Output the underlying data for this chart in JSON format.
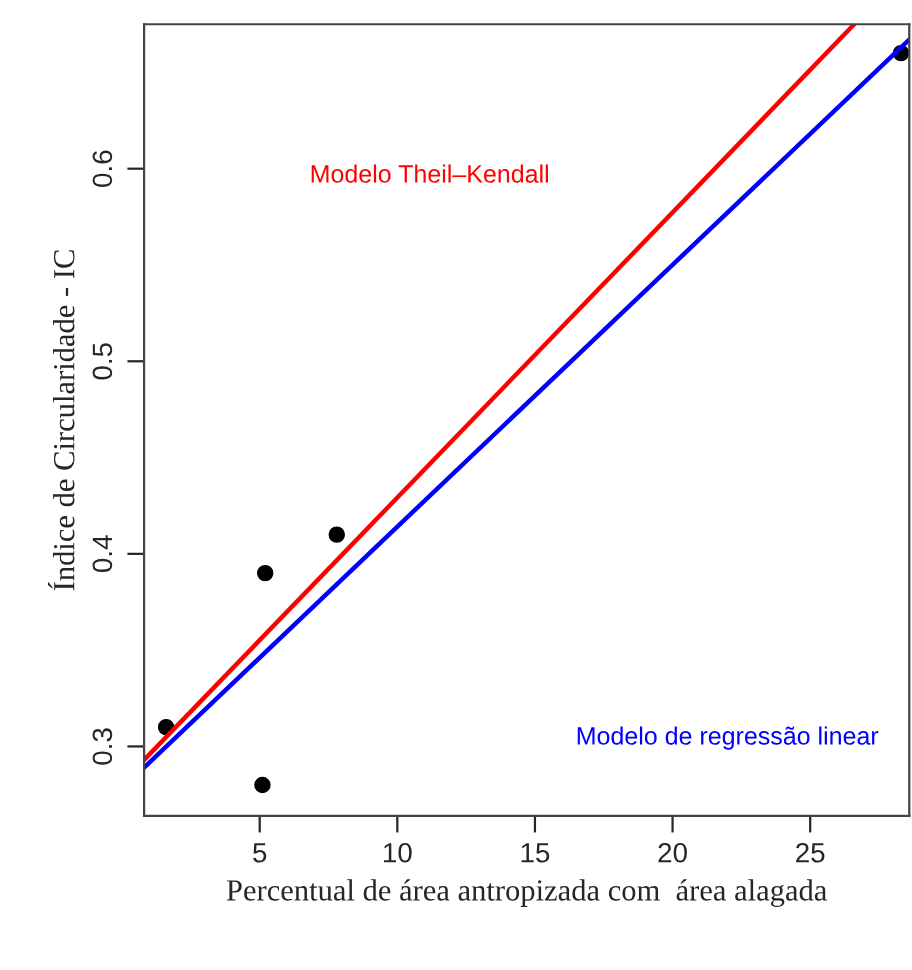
{
  "chart_data": {
    "type": "scatter",
    "xlabel": "Percentual de área antropizada com  área alagada",
    "ylabel": "Índice de Circularidade - IC",
    "series": [
      {
        "marker": "circle",
        "color": "#000000",
        "x": [
          1.6,
          5.1,
          5.2,
          7.8,
          28.3
        ],
        "values": [
          0.31,
          0.28,
          0.39,
          0.41,
          0.66
        ]
      },
      {
        "type": "line",
        "name": "Modelo Theil–Kendall",
        "color": "#ff0000",
        "x": [
          0.8,
          26.6
        ],
        "values": [
          0.293,
          0.675
        ]
      },
      {
        "type": "line",
        "name": "Modelo de regressão linear",
        "color": "#0000ff",
        "x": [
          0.8,
          28.6
        ],
        "values": [
          0.289,
          0.667
        ]
      }
    ],
    "xlim": [
      0.8,
      28.6
    ],
    "ylim": [
      0.264,
      0.675
    ],
    "xticks": [
      5,
      10,
      15,
      20,
      25
    ],
    "yticks": [
      0.3,
      0.4,
      0.5,
      0.6
    ],
    "grid": false,
    "legend": false
  }
}
